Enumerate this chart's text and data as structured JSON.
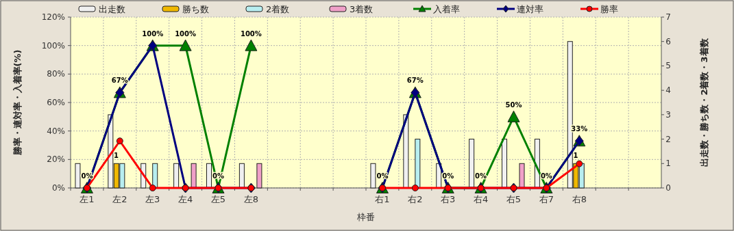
{
  "chart_data": {
    "type": "bar",
    "xlabel": "枠番",
    "ylabel": "勝率・連対率・入着率(%)",
    "y2label": "出走数・勝ち数・2着数・3着数",
    "categories": [
      "左1",
      "左2",
      "左3",
      "左4",
      "左5",
      "左8",
      null,
      null,
      null,
      "右1",
      "右2",
      "右3",
      "右4",
      "右5",
      "右7",
      "右8",
      null,
      null
    ],
    "series": [
      {
        "name": "出走数",
        "axis": "y2",
        "color": "#f0f0f0",
        "values": [
          1,
          3,
          1,
          1,
          1,
          1,
          null,
          null,
          null,
          1,
          3,
          1,
          2,
          2,
          2,
          6,
          null,
          null
        ]
      },
      {
        "name": "勝ち数",
        "axis": "y2",
        "color": "#f0b800",
        "values": [
          0,
          1,
          0,
          0,
          0,
          0,
          null,
          null,
          null,
          0,
          0,
          0,
          0,
          0,
          0,
          1,
          null,
          null
        ],
        "value_labels": [
          null,
          "1",
          null,
          null,
          null,
          null,
          null,
          null,
          null,
          null,
          null,
          null,
          null,
          null,
          null,
          "1",
          null,
          null
        ]
      },
      {
        "name": "2着数",
        "axis": "y2",
        "color": "#b8eef0",
        "values": [
          0,
          1,
          1,
          0,
          0,
          0,
          null,
          null,
          null,
          0,
          2,
          0,
          0,
          0,
          0,
          1,
          null,
          null
        ]
      },
      {
        "name": "3着数",
        "axis": "y2",
        "color": "#f0a0c8",
        "values": [
          0,
          0,
          0,
          1,
          0,
          1,
          null,
          null,
          null,
          0,
          0,
          0,
          0,
          1,
          0,
          0,
          null,
          null
        ]
      },
      {
        "name": "入着率",
        "type": "line",
        "marker": "triangle",
        "color": "#008000",
        "values": [
          0,
          67,
          100,
          100,
          0,
          100,
          null,
          null,
          null,
          0,
          67,
          0,
          0,
          50,
          0,
          33,
          null,
          null
        ],
        "value_labels": [
          "0%",
          "67%",
          "100%",
          "100%",
          "0%",
          "100%",
          null,
          null,
          null,
          "0%",
          "67%",
          "0%",
          "0%",
          "50%",
          "0%",
          "33%",
          null,
          null
        ]
      },
      {
        "name": "連対率",
        "type": "line",
        "marker": "diamond",
        "color": "#000080",
        "values": [
          0,
          67,
          100,
          0,
          0,
          0,
          null,
          null,
          null,
          0,
          67,
          0,
          0,
          0,
          0,
          33,
          null,
          null
        ]
      },
      {
        "name": "勝率",
        "type": "line",
        "marker": "circle",
        "color": "#ff0000",
        "values": [
          0,
          33,
          0,
          0,
          0,
          0,
          null,
          null,
          null,
          0,
          0,
          0,
          0,
          0,
          0,
          17,
          null,
          null
        ]
      }
    ],
    "ylim": [
      0,
      120
    ],
    "yticks": [
      {
        "value": 0,
        "label": "0%"
      },
      {
        "value": 20,
        "label": "20%"
      },
      {
        "value": 40,
        "label": "40%"
      },
      {
        "value": 60,
        "label": "60%"
      },
      {
        "value": 80,
        "label": "80%"
      },
      {
        "value": 100,
        "label": "100%"
      },
      {
        "value": 120,
        "label": "120%"
      }
    ],
    "y2lim": [
      0,
      7
    ],
    "y2ticks": [
      0,
      1,
      2,
      3,
      4,
      5,
      6,
      7
    ],
    "grid": true,
    "legend": "top",
    "line_style": "solid"
  }
}
